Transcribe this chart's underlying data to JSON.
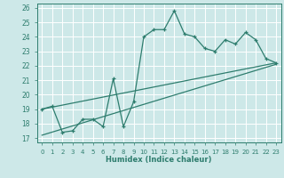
{
  "xlabel": "Humidex (Indice chaleur)",
  "xlim": [
    -0.5,
    23.5
  ],
  "ylim": [
    16.7,
    26.3
  ],
  "xticks": [
    0,
    1,
    2,
    3,
    4,
    5,
    6,
    7,
    8,
    9,
    10,
    11,
    12,
    13,
    14,
    15,
    16,
    17,
    18,
    19,
    20,
    21,
    22,
    23
  ],
  "yticks": [
    17,
    18,
    19,
    20,
    21,
    22,
    23,
    24,
    25,
    26
  ],
  "bg_color": "#cde8e8",
  "grid_color": "#ffffff",
  "line_color": "#2e7d6e",
  "main_line_x": [
    0,
    1,
    2,
    3,
    4,
    5,
    6,
    7,
    8,
    9,
    10,
    11,
    12,
    13,
    14,
    15,
    16,
    17,
    18,
    19,
    20,
    21,
    22,
    23
  ],
  "main_line_y": [
    19.0,
    19.2,
    17.4,
    17.5,
    18.3,
    18.3,
    17.8,
    21.1,
    17.8,
    19.5,
    24.0,
    24.5,
    24.5,
    25.8,
    24.2,
    24.0,
    23.2,
    23.0,
    23.8,
    23.5,
    24.3,
    23.8,
    22.5,
    22.2
  ],
  "trend1_x": [
    0,
    23
  ],
  "trend1_y": [
    19.0,
    22.2
  ],
  "trend2_x": [
    0,
    23
  ],
  "trend2_y": [
    17.2,
    22.1
  ]
}
